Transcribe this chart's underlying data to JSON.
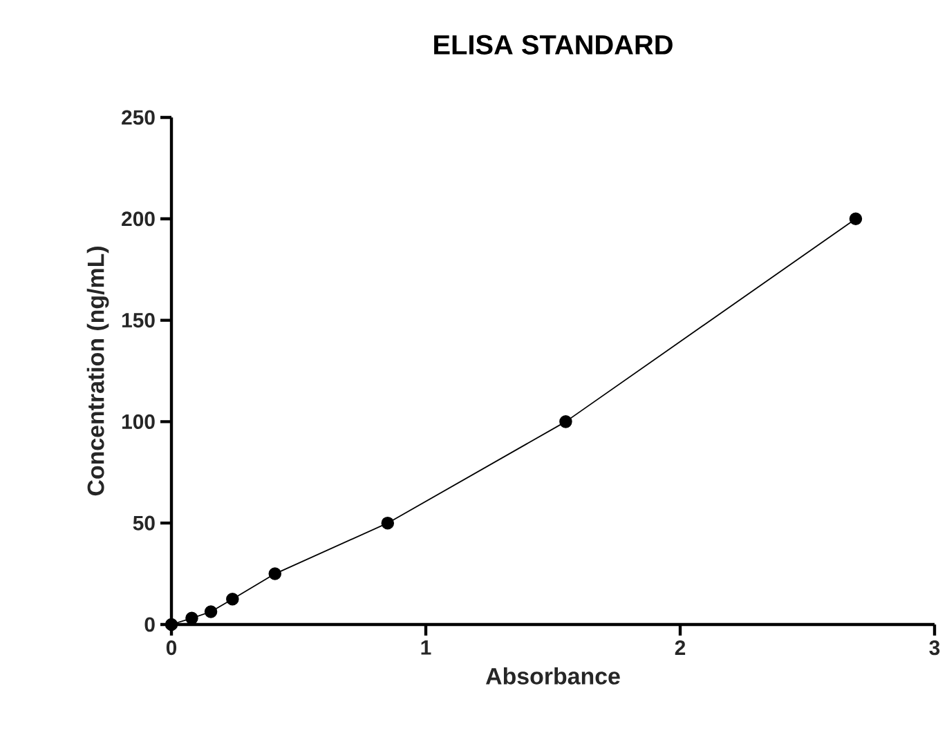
{
  "chart_data": {
    "type": "line",
    "title": "ELISA STANDARD",
    "xlabel": "Absorbance",
    "ylabel": "Concentration (ng/mL)",
    "x": [
      0,
      0.08,
      0.155,
      0.24,
      0.407,
      0.85,
      1.55,
      2.69
    ],
    "series": [
      {
        "color": "#000000",
        "values": [
          0,
          3.1,
          6.3,
          12.5,
          25,
          50,
          100,
          200
        ]
      }
    ],
    "xlim": [
      0,
      3
    ],
    "ylim": [
      0,
      250
    ],
    "xticks": [
      0,
      1,
      2,
      3
    ],
    "yticks": [
      0,
      50,
      100,
      150,
      200,
      250
    ],
    "grid": false,
    "marker": "circle",
    "line_style": "solid"
  }
}
